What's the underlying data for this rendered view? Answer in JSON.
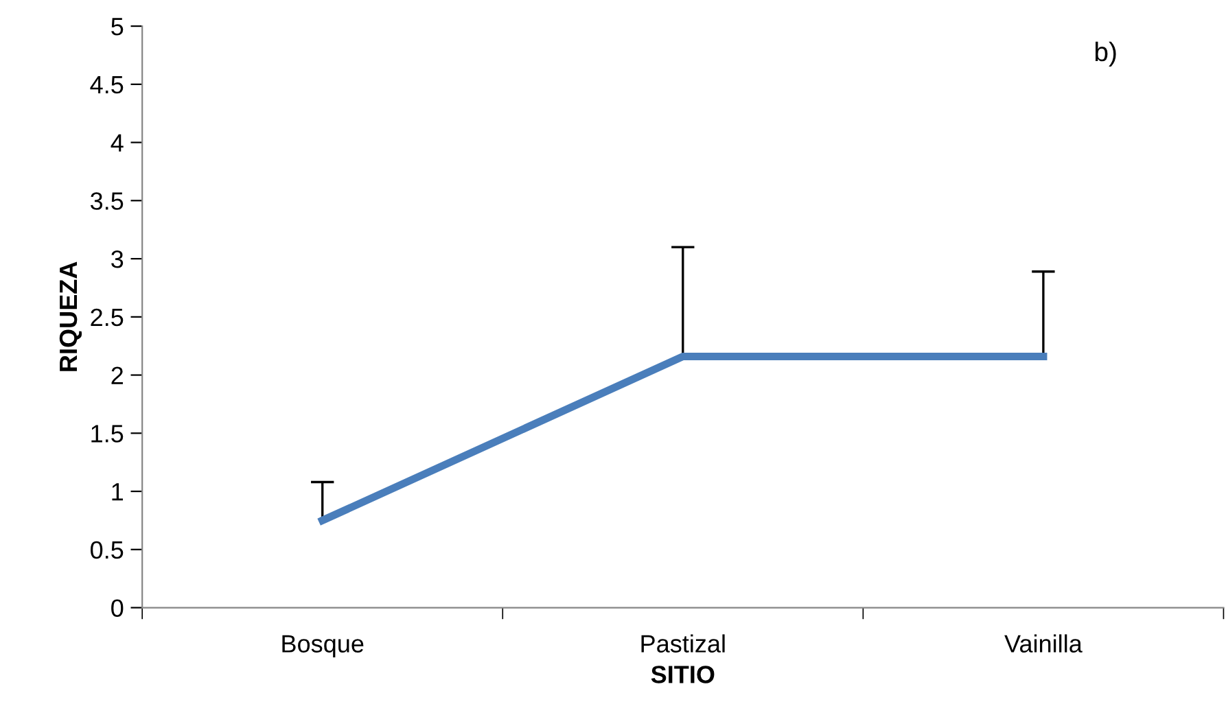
{
  "chart_data": {
    "type": "line",
    "xlabel": "SITIO",
    "ylabel": "RIQUEZA",
    "annotations": [
      "b)"
    ],
    "categories": [
      "Bosque",
      "Pastizal",
      "Vainilla"
    ],
    "series": [
      {
        "color": "#4a7ebb",
        "values": [
          0.75,
          2.16,
          2.16
        ],
        "errors": [
          [
            0.75,
            1.08
          ],
          [
            2.16,
            3.1
          ],
          [
            2.16,
            2.89
          ]
        ]
      }
    ],
    "ylim": [
      0,
      5
    ],
    "yticks": [
      0,
      0.5,
      1,
      1.5,
      2,
      2.5,
      3,
      3.5,
      4,
      4.5,
      5
    ],
    "grid": false,
    "legend": false,
    "marker": "none",
    "line_style": "solid"
  }
}
